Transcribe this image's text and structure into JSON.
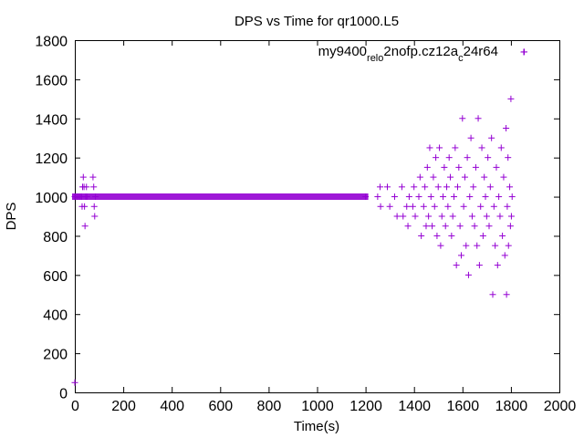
{
  "chart_data": {
    "type": "scatter",
    "title": "DPS vs Time for qr1000.L5",
    "xlabel": "Time(s)",
    "ylabel": "DPS",
    "xlim": [
      0,
      2000
    ],
    "ylim": [
      0,
      1800
    ],
    "xticks": [
      "0",
      "200",
      "400",
      "600",
      "800",
      "1000",
      "1200",
      "1400",
      "1600",
      "1800",
      "2000"
    ],
    "yticks": [
      "0",
      "200",
      "400",
      "600",
      "800",
      "1000",
      "1200",
      "1400",
      "1600",
      "1800"
    ],
    "grid": false,
    "legend_position": "top-right",
    "marker": "+",
    "series": [
      {
        "name": "my9400_rel_o2nofp.cz12a_c24r64",
        "legend_parts": [
          {
            "text": "my9400",
            "sub": false
          },
          {
            "text": "rel",
            "sub": true
          },
          {
            "text": "o",
            "sub": true
          },
          {
            "text": "2nofp.cz12a",
            "sub": false
          },
          {
            "text": "c",
            "sub": true
          },
          {
            "text": "24r64",
            "sub": false
          }
        ],
        "color": "#9400d3",
        "points": [
          [
            0,
            50
          ],
          [
            0,
            1000
          ],
          [
            8,
            1000
          ],
          [
            15,
            1000
          ],
          [
            22,
            1000
          ],
          [
            28,
            1000
          ],
          [
            30,
            950
          ],
          [
            32,
            1050
          ],
          [
            35,
            1100
          ],
          [
            38,
            1050
          ],
          [
            40,
            950
          ],
          [
            42,
            850
          ],
          [
            45,
            1000
          ],
          [
            48,
            1050
          ],
          [
            50,
            1000
          ],
          [
            75,
            1100
          ],
          [
            78,
            1050
          ],
          [
            80,
            950
          ],
          [
            82,
            900
          ],
          [
            85,
            1000
          ],
          [
            1200,
            1000
          ],
          [
            1250,
            1000
          ],
          [
            1260,
            1050
          ],
          [
            1262,
            950
          ],
          [
            1290,
            1050
          ],
          [
            1300,
            950
          ],
          [
            1320,
            1000
          ],
          [
            1330,
            900
          ],
          [
            1350,
            1050
          ],
          [
            1355,
            900
          ],
          [
            1370,
            950
          ],
          [
            1375,
            850
          ],
          [
            1380,
            1000
          ],
          [
            1395,
            950
          ],
          [
            1400,
            1050
          ],
          [
            1405,
            900
          ],
          [
            1420,
            1000
          ],
          [
            1425,
            1100
          ],
          [
            1430,
            800
          ],
          [
            1440,
            950
          ],
          [
            1445,
            1050
          ],
          [
            1450,
            850
          ],
          [
            1455,
            1150
          ],
          [
            1460,
            900
          ],
          [
            1465,
            1250
          ],
          [
            1470,
            1000
          ],
          [
            1475,
            850
          ],
          [
            1480,
            1100
          ],
          [
            1485,
            950
          ],
          [
            1490,
            1200
          ],
          [
            1495,
            800
          ],
          [
            1500,
            1050
          ],
          [
            1505,
            1250
          ],
          [
            1510,
            750
          ],
          [
            1515,
            900
          ],
          [
            1520,
            1000
          ],
          [
            1525,
            1150
          ],
          [
            1530,
            850
          ],
          [
            1535,
            1050
          ],
          [
            1540,
            950
          ],
          [
            1545,
            1200
          ],
          [
            1550,
            1100
          ],
          [
            1555,
            800
          ],
          [
            1560,
            900
          ],
          [
            1565,
            1000
          ],
          [
            1570,
            1250
          ],
          [
            1575,
            650
          ],
          [
            1580,
            1050
          ],
          [
            1585,
            1150
          ],
          [
            1590,
            850
          ],
          [
            1595,
            700
          ],
          [
            1600,
            1400
          ],
          [
            1605,
            950
          ],
          [
            1610,
            1100
          ],
          [
            1615,
            750
          ],
          [
            1620,
            1200
          ],
          [
            1625,
            600
          ],
          [
            1630,
            1000
          ],
          [
            1635,
            1300
          ],
          [
            1640,
            900
          ],
          [
            1645,
            1050
          ],
          [
            1650,
            850
          ],
          [
            1655,
            1150
          ],
          [
            1660,
            750
          ],
          [
            1665,
            1400
          ],
          [
            1670,
            650
          ],
          [
            1675,
            950
          ],
          [
            1680,
            1250
          ],
          [
            1685,
            800
          ],
          [
            1690,
            1100
          ],
          [
            1695,
            1000
          ],
          [
            1700,
            900
          ],
          [
            1705,
            1200
          ],
          [
            1710,
            850
          ],
          [
            1715,
            1050
          ],
          [
            1720,
            1300
          ],
          [
            1725,
            500
          ],
          [
            1730,
            950
          ],
          [
            1735,
            750
          ],
          [
            1740,
            1150
          ],
          [
            1745,
            650
          ],
          [
            1750,
            1000
          ],
          [
            1755,
            900
          ],
          [
            1760,
            1250
          ],
          [
            1765,
            800
          ],
          [
            1770,
            1100
          ],
          [
            1775,
            700
          ],
          [
            1780,
            1350
          ],
          [
            1782,
            500
          ],
          [
            1785,
            950
          ],
          [
            1788,
            1200
          ],
          [
            1790,
            750
          ],
          [
            1795,
            1050
          ],
          [
            1798,
            850
          ],
          [
            1800,
            1500
          ],
          [
            1802,
            900
          ],
          [
            1805,
            1000
          ],
          [
            1855,
            1740
          ]
        ]
      }
    ]
  }
}
